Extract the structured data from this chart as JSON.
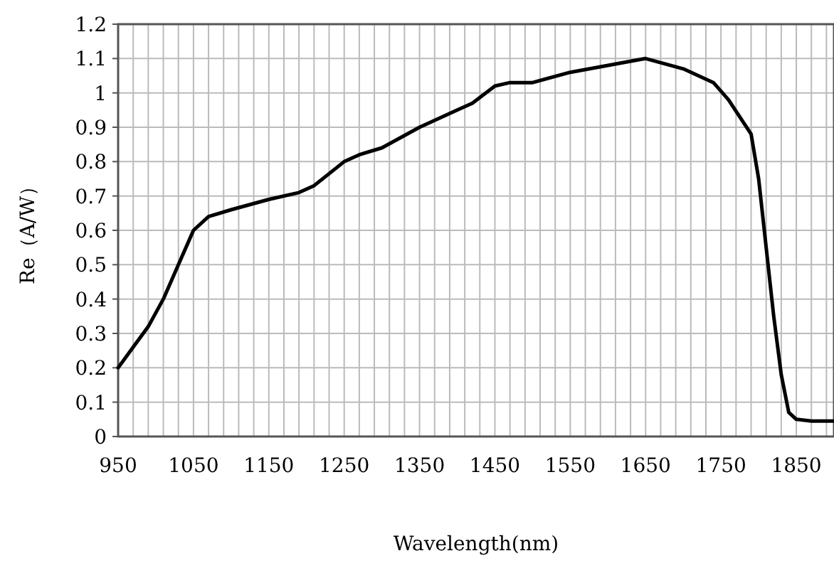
{
  "chart_data": {
    "type": "line",
    "xlabel": "Wavelength(nm)",
    "ylabel": "Re（A/W）",
    "x": [
      950,
      970,
      990,
      1010,
      1030,
      1050,
      1070,
      1100,
      1150,
      1190,
      1210,
      1250,
      1270,
      1300,
      1350,
      1400,
      1420,
      1450,
      1470,
      1500,
      1550,
      1600,
      1650,
      1700,
      1740,
      1760,
      1790,
      1800,
      1810,
      1820,
      1830,
      1840,
      1850,
      1870,
      1900
    ],
    "series": [
      {
        "color": "#000000",
        "values": [
          0.2,
          0.26,
          0.32,
          0.4,
          0.5,
          0.6,
          0.64,
          0.66,
          0.69,
          0.71,
          0.73,
          0.8,
          0.82,
          0.84,
          0.9,
          0.95,
          0.97,
          1.02,
          1.03,
          1.03,
          1.06,
          1.08,
          1.1,
          1.07,
          1.03,
          0.98,
          0.88,
          0.75,
          0.55,
          0.35,
          0.18,
          0.07,
          0.05,
          0.045,
          0.045
        ]
      }
    ],
    "xlim": [
      950,
      1900
    ],
    "xticks": [
      950,
      1050,
      1150,
      1250,
      1350,
      1450,
      1550,
      1650,
      1750,
      1850
    ],
    "ylim": [
      0,
      1.2
    ],
    "yticks": [
      0,
      0.1,
      0.2,
      0.3,
      0.4,
      0.5,
      0.6,
      0.7,
      0.8,
      0.9,
      1,
      1.1,
      1.2
    ],
    "grid": true,
    "marker": "none",
    "line_style": "solid"
  }
}
